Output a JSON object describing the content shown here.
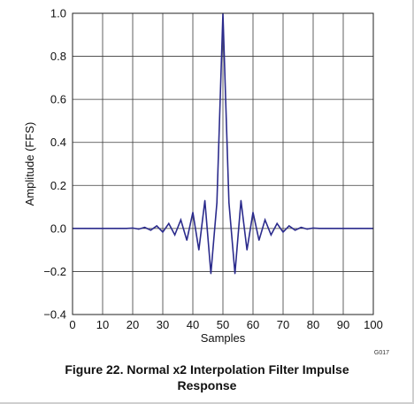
{
  "chart_data": {
    "type": "line",
    "title": "",
    "xlabel": "Samples",
    "ylabel": "Amplitude (FFS)",
    "xlim": [
      0,
      100
    ],
    "ylim": [
      -0.4,
      1.0
    ],
    "x_ticks": [
      0,
      10,
      20,
      30,
      40,
      50,
      60,
      70,
      80,
      90,
      100
    ],
    "y_ticks": [
      -0.4,
      -0.2,
      0.0,
      0.2,
      0.4,
      0.6,
      0.8,
      1.0
    ],
    "y_tick_labels": [
      "−0.4",
      "−0.2",
      "0.0",
      "0.2",
      "0.4",
      "0.6",
      "0.8",
      "1.0"
    ],
    "grid": true,
    "series": [
      {
        "color": "#2b2b8c",
        "x": [
          0,
          2,
          4,
          6,
          8,
          10,
          12,
          14,
          16,
          18,
          20,
          22,
          24,
          26,
          28,
          30,
          32,
          34,
          36,
          38,
          40,
          42,
          44,
          46,
          48,
          50,
          52,
          54,
          56,
          58,
          60,
          62,
          64,
          66,
          68,
          70,
          72,
          74,
          76,
          78,
          80,
          82,
          84,
          86,
          88,
          90,
          92,
          94,
          96,
          98,
          100
        ],
        "y": [
          0,
          0,
          0,
          0,
          0,
          0,
          0,
          0,
          0,
          0,
          0.002,
          -0.003,
          0.005,
          -0.008,
          0.012,
          -0.017,
          0.023,
          -0.03,
          0.04,
          -0.055,
          0.075,
          -0.1,
          0.13,
          -0.21,
          0.12,
          1.0,
          0.12,
          -0.21,
          0.13,
          -0.1,
          0.075,
          -0.055,
          0.04,
          -0.03,
          0.023,
          -0.017,
          0.012,
          -0.008,
          0.005,
          -0.003,
          0.002,
          0,
          0,
          0,
          0,
          0,
          0,
          0,
          0,
          0,
          0
        ]
      }
    ],
    "code": "G017"
  },
  "caption": {
    "line1": "Figure 22. Normal x2 Interpolation Filter Impulse",
    "line2": "Response"
  }
}
